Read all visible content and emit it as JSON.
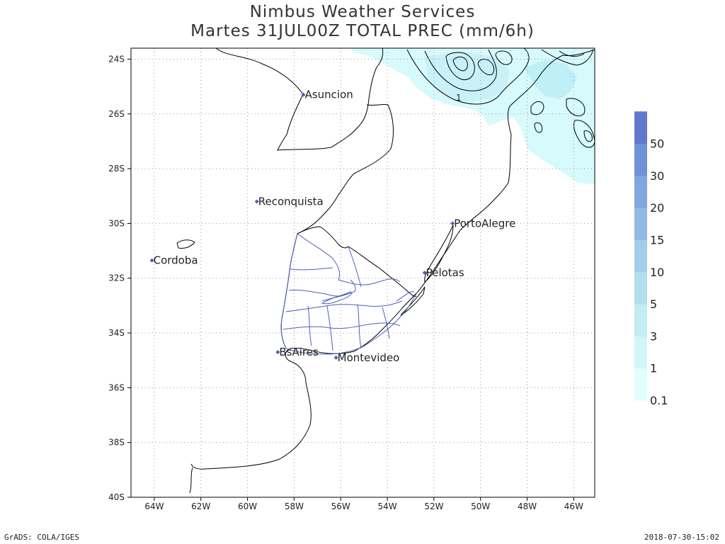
{
  "title": {
    "line1": "Nimbus Weather Services",
    "line2": "Martes 31JUL00Z TOTAL PREC (mm/6h)"
  },
  "map": {
    "lon_range": [
      -65,
      -45.1
    ],
    "lat_range": [
      -40,
      -23.6
    ],
    "lat_ticks": [
      {
        "v": -24,
        "label": "24S"
      },
      {
        "v": -26,
        "label": "26S"
      },
      {
        "v": -28,
        "label": "28S"
      },
      {
        "v": -30,
        "label": "30S"
      },
      {
        "v": -32,
        "label": "32S"
      },
      {
        "v": -34,
        "label": "34S"
      },
      {
        "v": -36,
        "label": "36S"
      },
      {
        "v": -38,
        "label": "38S"
      },
      {
        "v": -40,
        "label": "40S"
      }
    ],
    "lon_ticks": [
      {
        "v": -64,
        "label": "64W"
      },
      {
        "v": -62,
        "label": "62W"
      },
      {
        "v": -60,
        "label": "60W"
      },
      {
        "v": -58,
        "label": "58W"
      },
      {
        "v": -56,
        "label": "56W"
      },
      {
        "v": -54,
        "label": "54W"
      },
      {
        "v": -52,
        "label": "52W"
      },
      {
        "v": -50,
        "label": "50W"
      },
      {
        "v": -48,
        "label": "48W"
      },
      {
        "v": -46,
        "label": "46W"
      }
    ],
    "cities": [
      {
        "name": "Asuncion",
        "lon": -57.6,
        "lat": -25.3
      },
      {
        "name": "Reconquista",
        "lon": -59.6,
        "lat": -29.2
      },
      {
        "name": "Cordoba",
        "lon": -64.1,
        "lat": -31.35
      },
      {
        "name": "PortoAlegre",
        "lon": -51.2,
        "lat": -30.0
      },
      {
        "name": "Pelotas",
        "lon": -52.4,
        "lat": -31.8
      },
      {
        "name": "BsAires",
        "lon": -58.7,
        "lat": -34.7
      },
      {
        "name": "Montevideo",
        "lon": -56.2,
        "lat": -34.9
      }
    ],
    "contour_label": "1"
  },
  "colorbar": {
    "labels": [
      "0.1",
      "1",
      "3",
      "5",
      "10",
      "15",
      "20",
      "30",
      "50"
    ],
    "colors": [
      "#e0fefe",
      "#d2f5f8",
      "#c4ecf2",
      "#b3deee",
      "#a3cde9",
      "#92b9e3",
      "#82a6dd",
      "#7191d5",
      "#6179cd"
    ]
  },
  "footer": {
    "left": "GrADS: COLA/IGES",
    "right": "2018-07-30-15:02"
  }
}
